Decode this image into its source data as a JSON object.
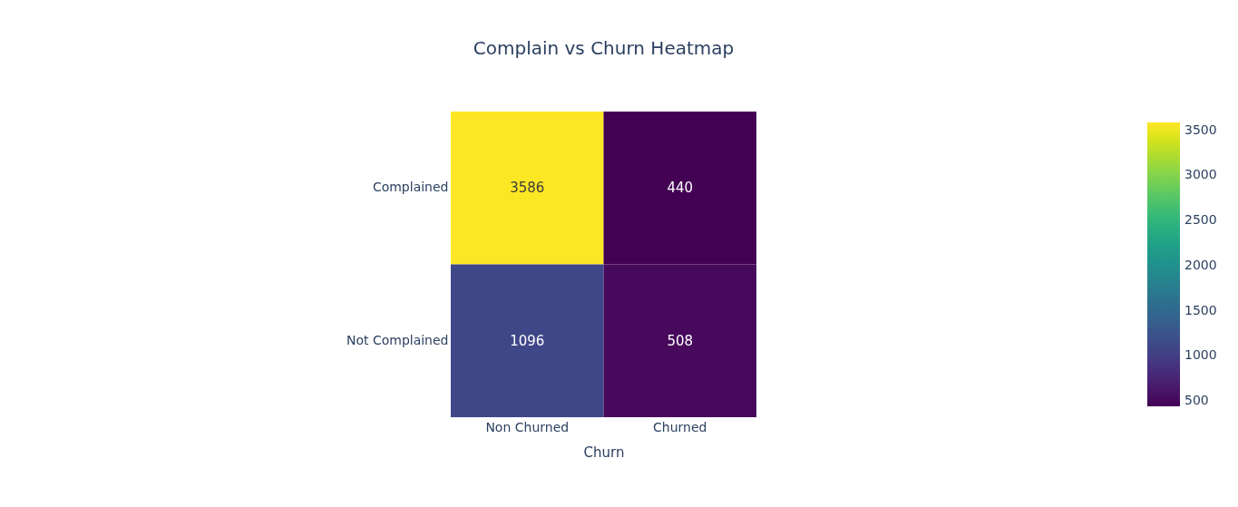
{
  "chart_data": {
    "type": "heatmap",
    "title": "Complain vs Churn Heatmap",
    "xlabel": "Churn",
    "categories": [
      "Non Churned",
      "Churned"
    ],
    "y_categories": [
      "Complained",
      "Not Complained"
    ],
    "cells": [
      [
        3586,
        440
      ],
      [
        1096,
        508
      ]
    ],
    "clim": [
      440,
      3586
    ],
    "cticks": [
      500,
      1000,
      1500,
      2000,
      2500,
      3000,
      3500
    ],
    "data_labels": true
  }
}
